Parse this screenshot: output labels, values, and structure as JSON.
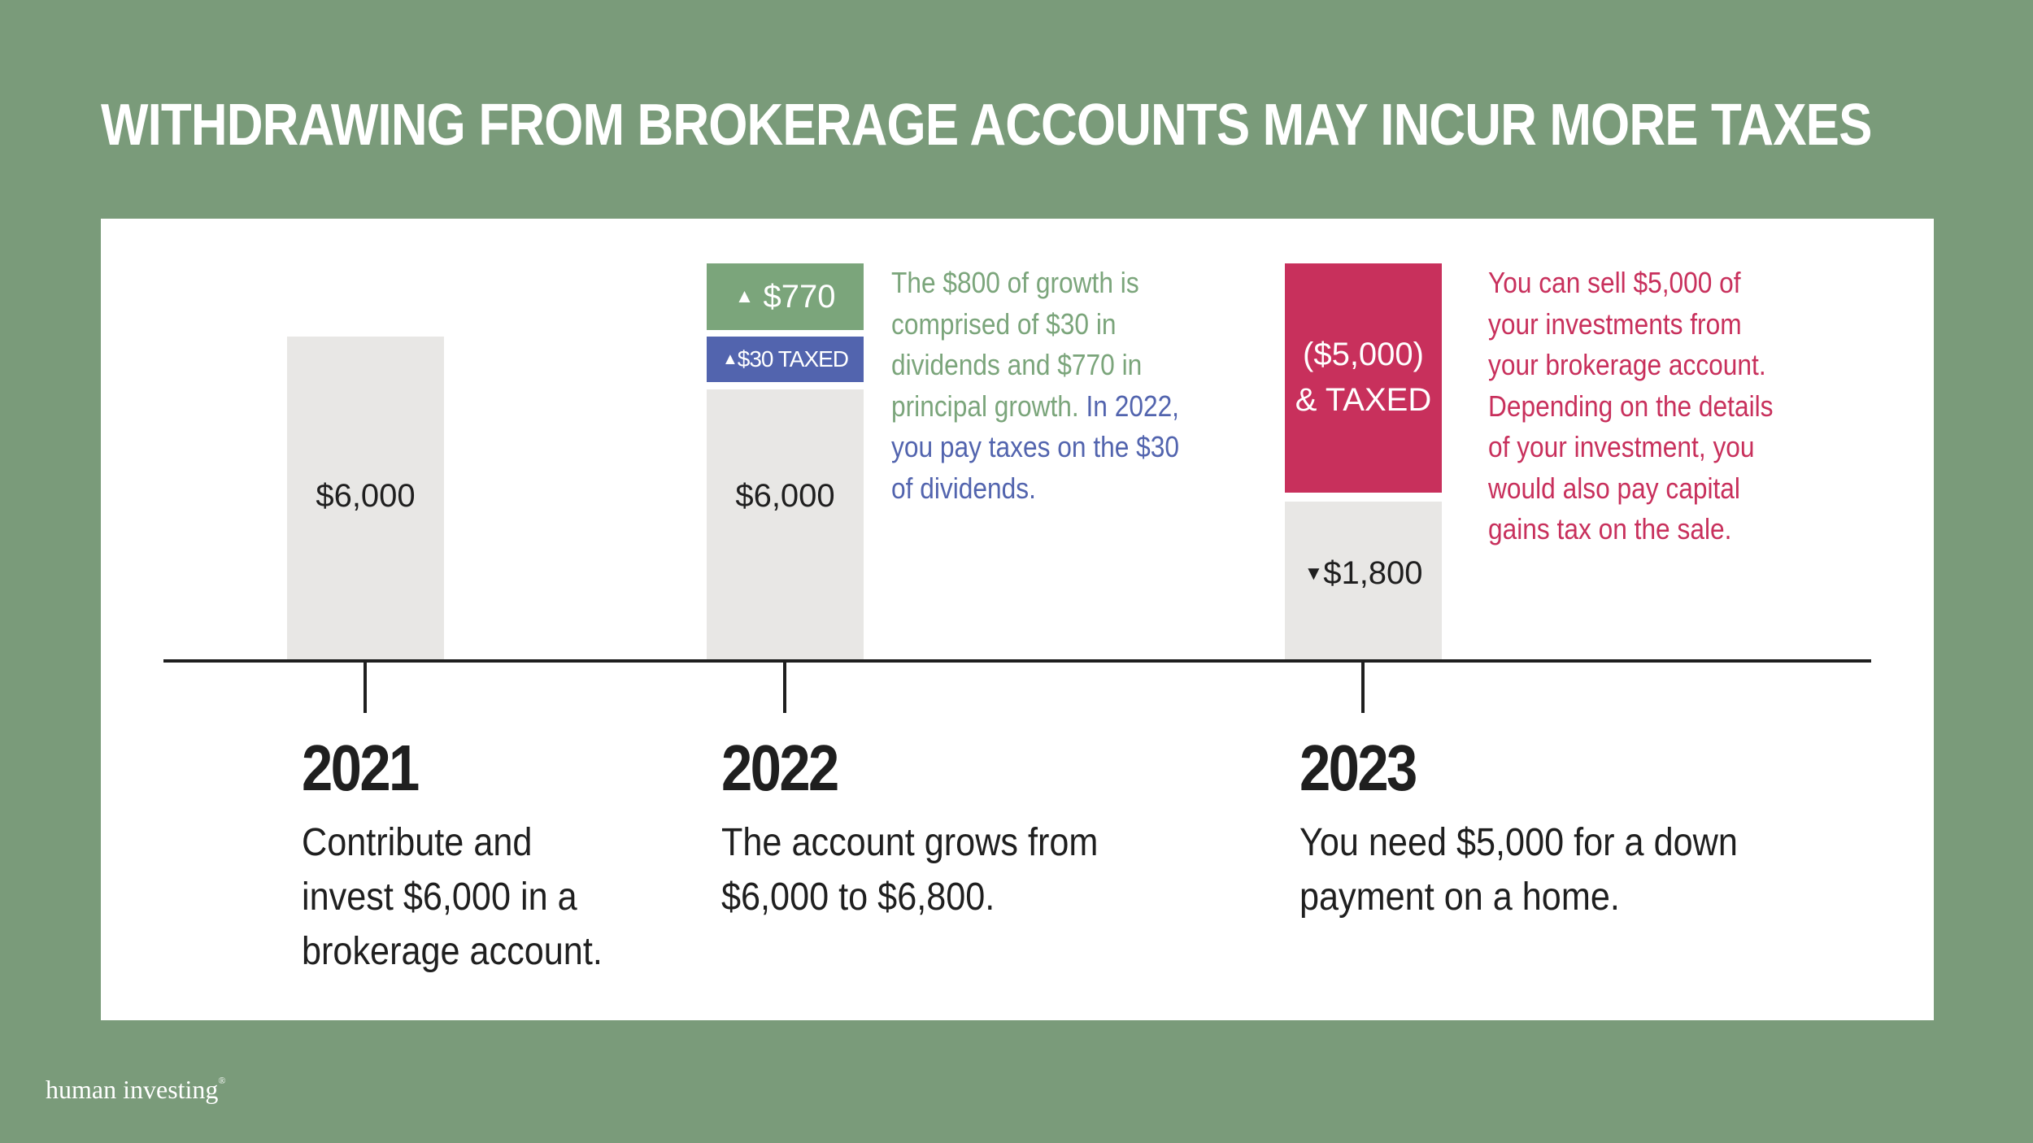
{
  "title": "WITHDRAWING FROM BROKERAGE ACCOUNTS MAY INCUR MORE TAXES",
  "colors": {
    "background": "#7a9b7a",
    "panel": "#ffffff",
    "bar_base": "#e8e7e5",
    "growth": "#7ba57b",
    "dividends_taxed": "#5264ae",
    "withdrawal_taxed": "#c8305c",
    "text": "#1f1f1f"
  },
  "timeline": [
    {
      "year": "2021",
      "description_lines": [
        "Contribute and",
        "invest $6,000 in a",
        "brokerage account."
      ],
      "bar_label": "$6,000"
    },
    {
      "year": "2022",
      "description_lines": [
        "The account grows from",
        "$6,000 to $6,800."
      ],
      "bar_label": "$6,000",
      "growth_label": "$770",
      "dividend_label": "$30 TAXED",
      "note_green": [
        "The $800 of growth is",
        "comprised of $30 in",
        "dividends and $770 in",
        "principal growth."
      ],
      "note_blue_inline": "In 2022,",
      "note_blue": [
        "you pay taxes on the $30",
        "of dividends."
      ]
    },
    {
      "year": "2023",
      "description_lines": [
        "You need $5,000 for a down",
        "payment on a home."
      ],
      "withdrawal_label_lines": [
        "($5,000)",
        "& TAXED"
      ],
      "remaining_label": "$1,800",
      "note_red": [
        "You can sell $5,000 of",
        "your investments from",
        "your brokerage account.",
        "Depending on the details",
        "of your investment, you",
        "would also pay capital",
        "gains tax on the sale."
      ]
    }
  ],
  "icons": {
    "up_arrow": "up-triangle-icon",
    "down_arrow": "down-triangle-icon"
  },
  "brand": {
    "name": "human investing",
    "mark": "®"
  }
}
